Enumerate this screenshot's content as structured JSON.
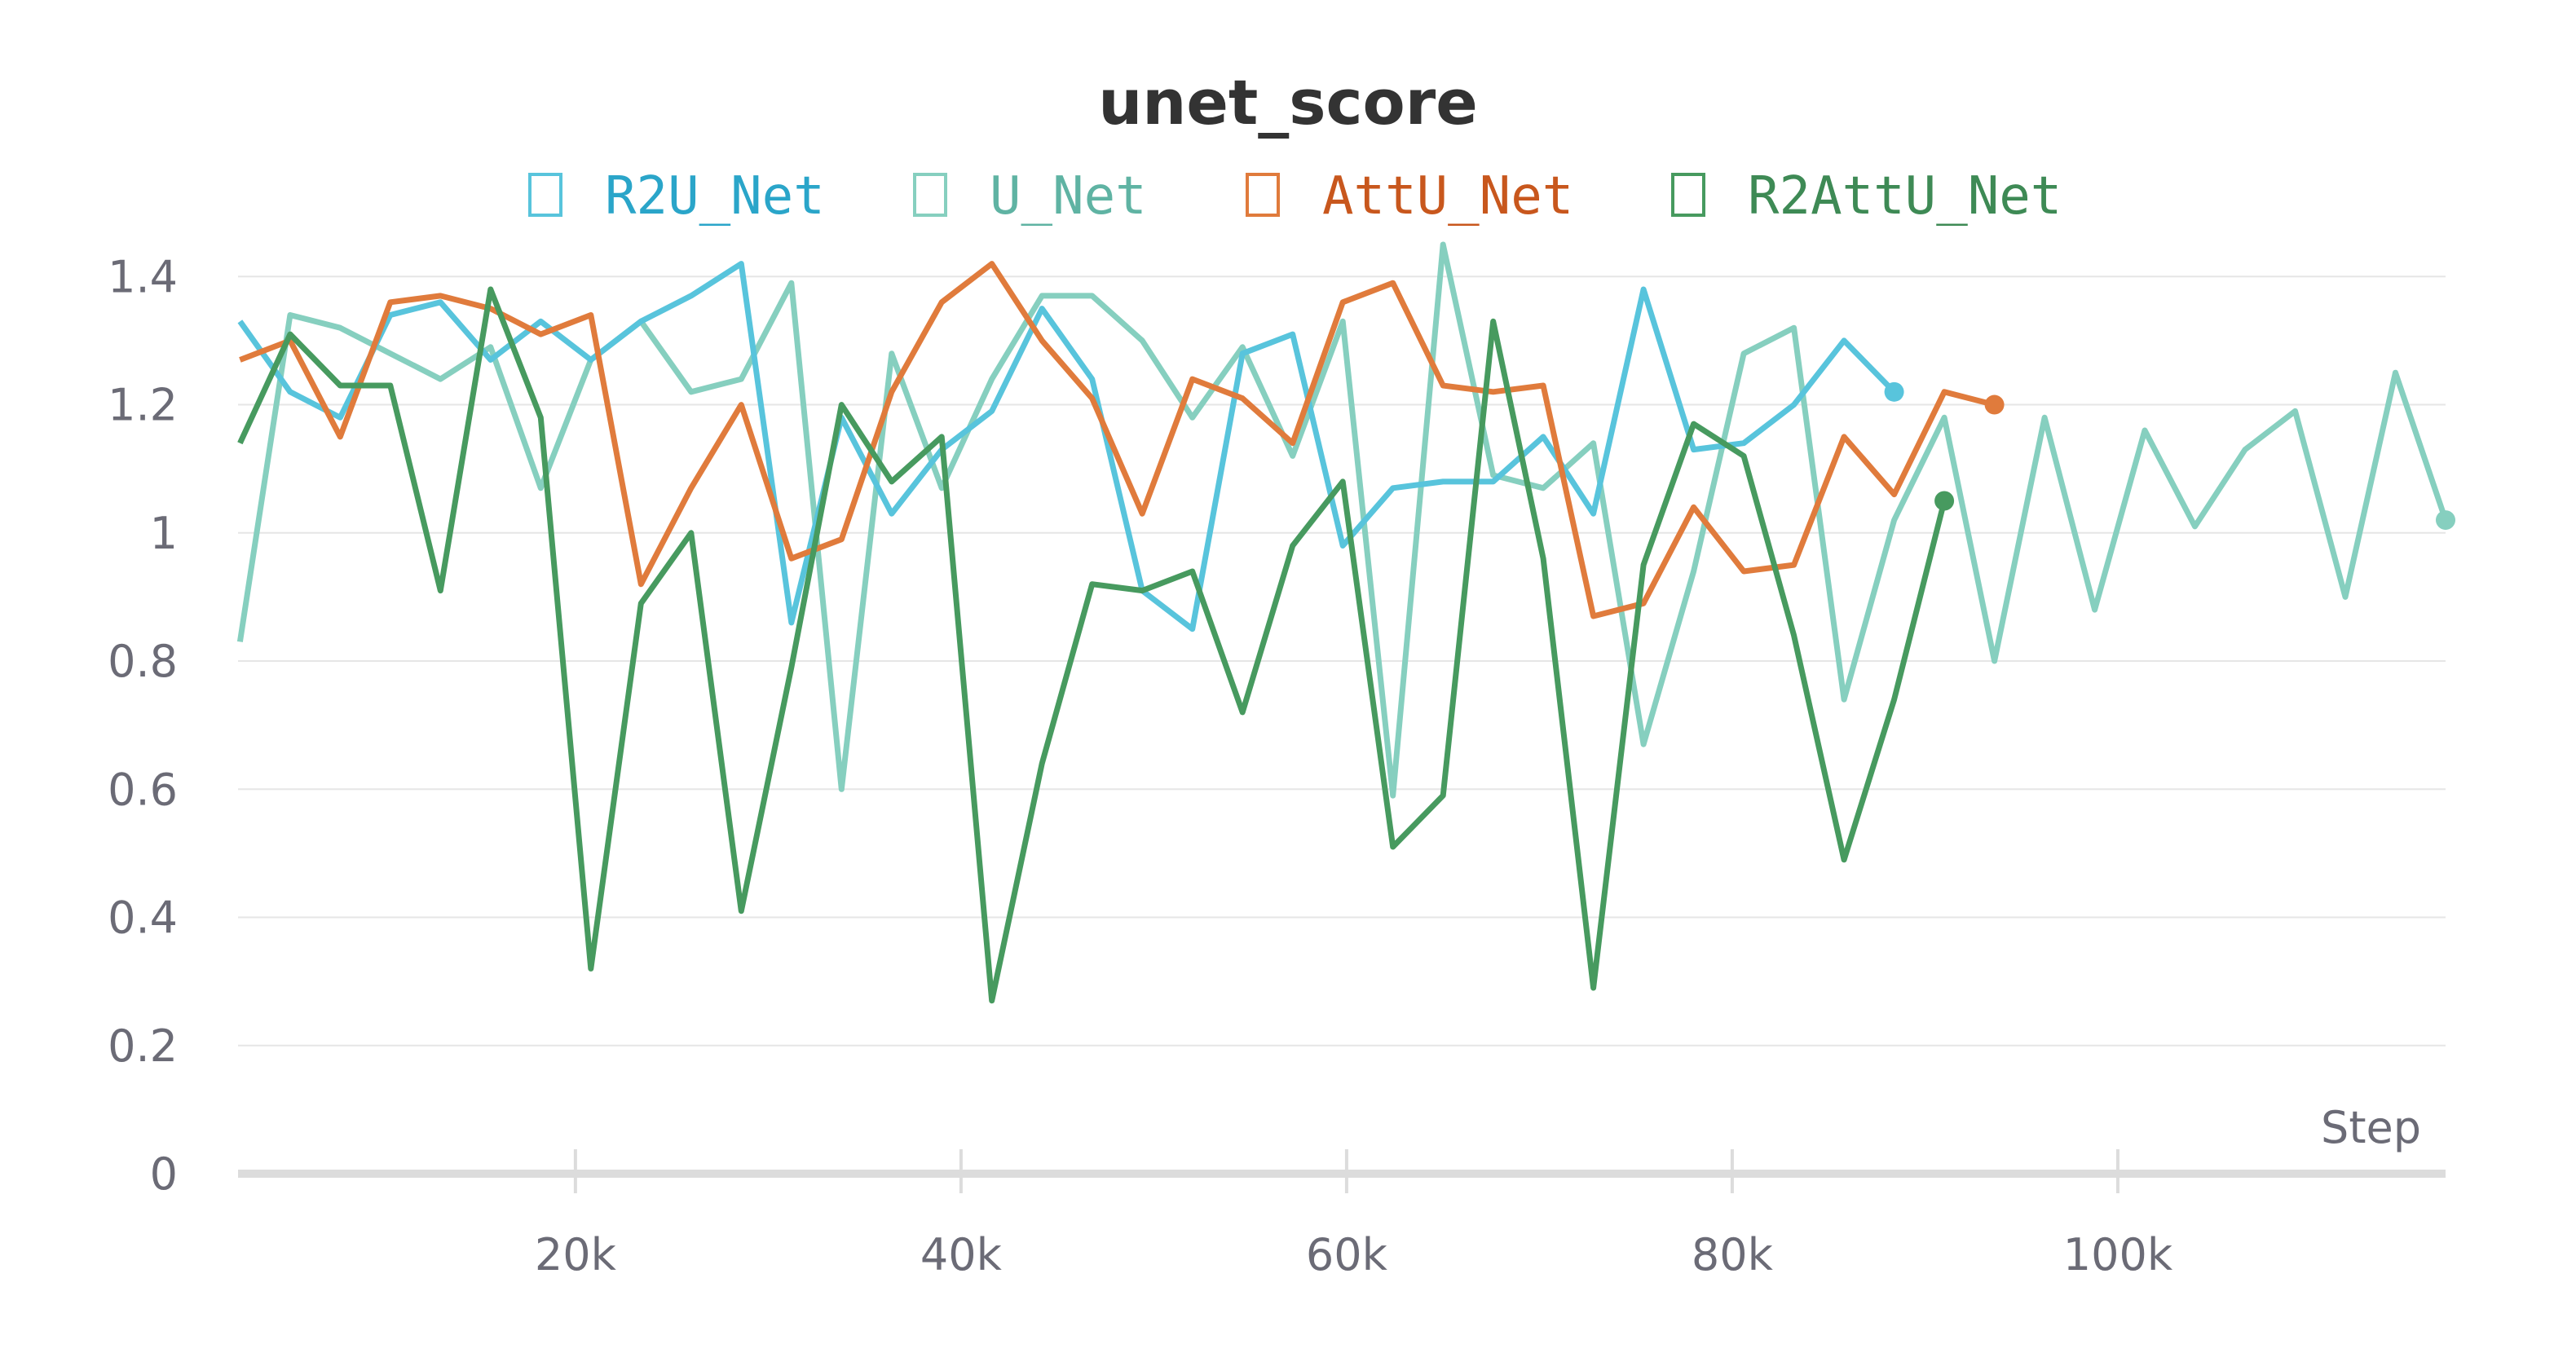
{
  "chart_data": {
    "type": "line",
    "title": "unet_score",
    "xlabel": "Step",
    "ylabel": "",
    "xlim": [
      2500,
      117000
    ],
    "ylim": [
      0,
      1.45
    ],
    "x_ticks": [
      20000,
      40000,
      60000,
      80000,
      100000
    ],
    "x_tick_labels": [
      "20k",
      "40k",
      "60k",
      "80k",
      "100k"
    ],
    "y_ticks": [
      0,
      0.2,
      0.4,
      0.6,
      0.8,
      1,
      1.2,
      1.4
    ],
    "y_tick_labels": [
      "0",
      "0.2",
      "0.4",
      "0.6",
      "0.8",
      "1",
      "1.2",
      "1.4"
    ],
    "grid": true,
    "legend_position": "top",
    "series": [
      {
        "name": "U_Net",
        "color": "#86cfbf",
        "x": [
          2600,
          5200,
          7800,
          10400,
          13000,
          15600,
          18200,
          20800,
          23400,
          26000,
          28600,
          31200,
          33800,
          36400,
          39000,
          41600,
          44200,
          46800,
          49400,
          52000,
          54600,
          57200,
          59800,
          62400,
          65000,
          67600,
          70200,
          72800,
          75400,
          78000,
          80600,
          83200,
          85800,
          88400,
          91000,
          93600,
          96200,
          98800,
          101400,
          104000,
          106600,
          109200,
          111800,
          114400,
          117000
        ],
        "y": [
          0.83,
          1.34,
          1.32,
          1.28,
          1.24,
          1.29,
          1.07,
          1.27,
          1.33,
          1.22,
          1.24,
          1.39,
          0.6,
          1.28,
          1.07,
          1.24,
          1.37,
          1.37,
          1.3,
          1.18,
          1.29,
          1.12,
          1.33,
          0.59,
          1.45,
          1.09,
          1.07,
          1.14,
          0.67,
          0.94,
          1.28,
          1.32,
          0.74,
          1.02,
          1.18,
          0.8,
          1.18,
          0.88,
          1.16,
          1.01,
          1.13,
          1.19,
          0.9,
          1.25,
          1.02
        ]
      },
      {
        "name": "R2U_Net",
        "color": "#58c4dc",
        "x": [
          2600,
          5200,
          7800,
          10400,
          13000,
          15600,
          18200,
          20800,
          23400,
          26000,
          28600,
          31200,
          33800,
          36400,
          39000,
          41600,
          44200,
          46800,
          49400,
          52000,
          54600,
          57200,
          59800,
          62400,
          65000,
          67600,
          70200,
          72800,
          75400,
          78000,
          80600,
          83200,
          85800,
          88400
        ],
        "y": [
          1.33,
          1.22,
          1.18,
          1.34,
          1.36,
          1.27,
          1.33,
          1.27,
          1.33,
          1.37,
          1.42,
          0.86,
          1.18,
          1.03,
          1.13,
          1.19,
          1.35,
          1.24,
          0.91,
          0.85,
          1.28,
          1.31,
          0.98,
          1.07,
          1.08,
          1.08,
          1.15,
          1.03,
          1.38,
          1.13,
          1.14,
          1.2,
          1.3,
          1.22
        ]
      },
      {
        "name": "AttU_Net",
        "color": "#e07b3c",
        "x": [
          2600,
          5200,
          7800,
          10400,
          13000,
          15600,
          18200,
          20800,
          23400,
          26000,
          28600,
          31200,
          33800,
          36400,
          39000,
          41600,
          44200,
          46800,
          49400,
          52000,
          54600,
          57200,
          59800,
          62400,
          65000,
          67600,
          70200,
          72800,
          75400,
          78000,
          80600,
          83200,
          85800,
          88400,
          91000,
          93600
        ],
        "y": [
          1.27,
          1.3,
          1.15,
          1.36,
          1.37,
          1.35,
          1.31,
          1.34,
          0.92,
          1.07,
          1.2,
          0.96,
          0.99,
          1.22,
          1.36,
          1.42,
          1.3,
          1.21,
          1.03,
          1.24,
          1.21,
          1.14,
          1.36,
          1.39,
          1.23,
          1.22,
          1.23,
          0.87,
          0.89,
          1.04,
          0.94,
          0.95,
          1.15,
          1.06,
          1.22,
          1.2
        ]
      },
      {
        "name": "R2AttU_Net",
        "color": "#479a5f",
        "x": [
          2600,
          5200,
          7800,
          10400,
          13000,
          15600,
          18200,
          20800,
          23400,
          26000,
          28600,
          31200,
          33800,
          36400,
          39000,
          41600,
          44200,
          46800,
          49400,
          52000,
          54600,
          57200,
          59800,
          62400,
          65000,
          67600,
          70200,
          72800,
          75400,
          78000,
          80600,
          83200,
          85800,
          88400,
          91000
        ],
        "y": [
          1.14,
          1.31,
          1.23,
          1.23,
          0.91,
          1.38,
          1.18,
          0.32,
          0.89,
          1.0,
          0.41,
          0.79,
          1.2,
          1.08,
          1.15,
          0.27,
          0.64,
          0.92,
          0.91,
          0.94,
          0.72,
          0.98,
          1.08,
          0.51,
          0.59,
          1.33,
          0.96,
          0.29,
          0.95,
          1.17,
          1.12,
          0.84,
          0.49,
          0.74,
          1.05
        ]
      }
    ],
    "legend": [
      {
        "name": "R2U_Net",
        "color": "#58c4dc",
        "text_color": "#2aa5c9"
      },
      {
        "name": "U_Net",
        "color": "#86cfbf",
        "text_color": "#5fb3a3"
      },
      {
        "name": "AttU_Net",
        "color": "#e07b3c",
        "text_color": "#c8571d"
      },
      {
        "name": "R2AttU_Net",
        "color": "#479a5f",
        "text_color": "#3e8a55"
      }
    ]
  }
}
